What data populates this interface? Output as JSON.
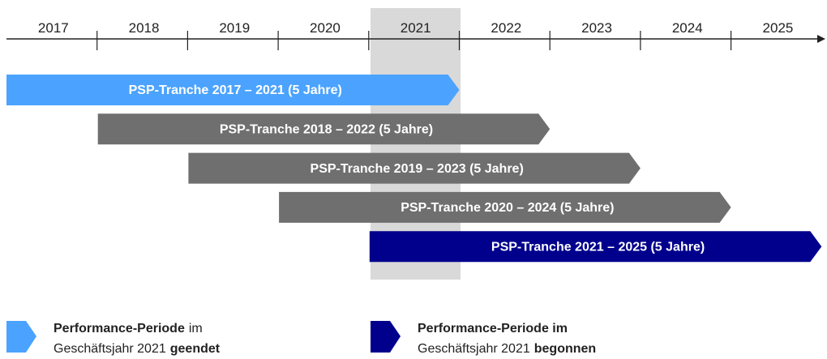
{
  "years": [
    "2017",
    "2018",
    "2019",
    "2020",
    "2021",
    "2022",
    "2023",
    "2024",
    "2025"
  ],
  "tranches": [
    {
      "label": "PSP-Tranche 2017 – 2021 (5 Jahre)",
      "color": "#4ba3ff"
    },
    {
      "label": "PSP-Tranche 2018 – 2022 (5 Jahre)",
      "color": "#6f6f6f"
    },
    {
      "label": "PSP-Tranche 2019 – 2023 (5 Jahre)",
      "color": "#6f6f6f"
    },
    {
      "label": "PSP-Tranche 2020 – 2024 (5 Jahre)",
      "color": "#6f6f6f"
    },
    {
      "label": "PSP-Tranche 2021 – 2025 (5 Jahre)",
      "color": "#00008c"
    }
  ],
  "legend": [
    {
      "color": "#4ba3ff",
      "lines": [
        [
          {
            "text": "Performance-Periode",
            "bold": true
          },
          {
            "text": "im",
            "bold": false
          }
        ],
        [
          {
            "text": "Geschäftsjahr 2021",
            "bold": false
          },
          {
            "text": "geendet",
            "bold": true
          }
        ]
      ]
    },
    {
      "color": "#00008c",
      "lines": [
        [
          {
            "text": "Performance-Periode im",
            "bold": true
          }
        ],
        [
          {
            "text": "Geschäftsjahr 2021",
            "bold": false
          },
          {
            "text": "begonnen",
            "bold": true
          }
        ]
      ]
    }
  ]
}
